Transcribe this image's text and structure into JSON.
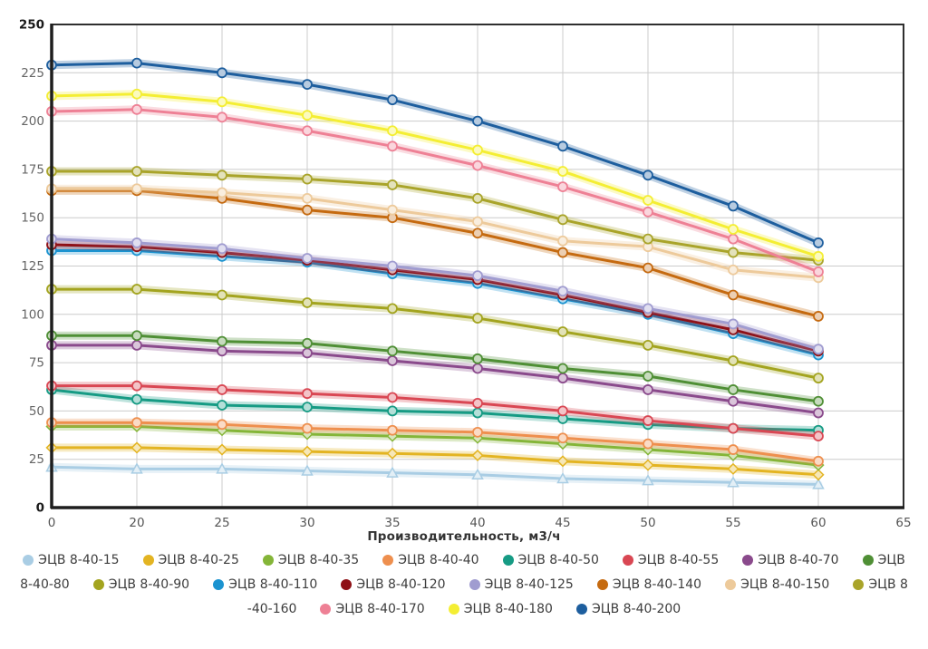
{
  "chart_data": {
    "type": "line",
    "title": "",
    "xlabel": "Производительность, м3/ч",
    "ylabel": "",
    "x_ticks": [
      "0",
      "20",
      "25",
      "30",
      "35",
      "40",
      "45",
      "50",
      "55",
      "60",
      "65"
    ],
    "categories": [
      "0",
      "20",
      "25",
      "30",
      "35",
      "40",
      "45",
      "50",
      "55",
      "60"
    ],
    "y_ticks": [
      0,
      25,
      50,
      75,
      100,
      125,
      150,
      175,
      200,
      225,
      250
    ],
    "ylim": [
      0,
      250
    ],
    "grid": true,
    "grid_color": "#cccccc",
    "axis_color": "#2f2f2f",
    "tick_label_color": "#666666",
    "series": [
      {
        "name": "ЭЦВ 8-40-15",
        "color": "#a9cde4",
        "marker": "triangle",
        "values": [
          21,
          20,
          20,
          19,
          18,
          17,
          15,
          14,
          13,
          12
        ]
      },
      {
        "name": "ЭЦВ 8-40-25",
        "color": "#e3b422",
        "marker": "diamond",
        "values": [
          31,
          31,
          30,
          29,
          28,
          27,
          24,
          22,
          20,
          17
        ]
      },
      {
        "name": "ЭЦВ 8-40-35",
        "color": "#84b538",
        "marker": "diamond",
        "values": [
          42,
          42,
          40,
          38,
          37,
          36,
          33,
          30,
          27,
          22
        ]
      },
      {
        "name": "ЭЦВ 8-40-40",
        "color": "#ee8f4e",
        "marker": "circle",
        "values": [
          44,
          44,
          43,
          41,
          40,
          39,
          36,
          33,
          30,
          24
        ]
      },
      {
        "name": "ЭЦВ 8-40-50",
        "color": "#169b84",
        "marker": "circle",
        "values": [
          61,
          56,
          53,
          52,
          50,
          49,
          46,
          43,
          41,
          40
        ]
      },
      {
        "name": "ЭЦВ 8-40-55",
        "color": "#d94753",
        "marker": "circle",
        "values": [
          63,
          63,
          61,
          59,
          57,
          54,
          50,
          45,
          41,
          37
        ]
      },
      {
        "name": "ЭЦВ 8-40-70",
        "color": "#8a4a8c",
        "marker": "circle",
        "values": [
          84,
          84,
          81,
          80,
          76,
          72,
          67,
          61,
          55,
          49
        ]
      },
      {
        "name": "ЭЦВ 8-40-80",
        "color": "#4f8f35",
        "marker": "circle",
        "values": [
          89,
          89,
          86,
          85,
          81,
          77,
          72,
          68,
          61,
          55
        ]
      },
      {
        "name": "ЭЦВ 8-40-90",
        "color": "#a3a41f",
        "marker": "circle",
        "values": [
          113,
          113,
          110,
          106,
          103,
          98,
          91,
          84,
          76,
          67
        ]
      },
      {
        "name": "ЭЦВ 8-40-110",
        "color": "#1b93d0",
        "marker": "circle",
        "values": [
          133,
          133,
          130,
          127,
          121,
          116,
          108,
          100,
          90,
          79
        ]
      },
      {
        "name": "ЭЦВ 8-40-120",
        "color": "#8e1016",
        "marker": "circle",
        "values": [
          136,
          135,
          132,
          128,
          123,
          118,
          110,
          101,
          92,
          81
        ]
      },
      {
        "name": "ЭЦВ 8-40-125",
        "color": "#a09cd0",
        "marker": "circle",
        "values": [
          139,
          137,
          134,
          129,
          125,
          120,
          112,
          103,
          95,
          82
        ]
      },
      {
        "name": "ЭЦВ 8-40-140",
        "color": "#c56a10",
        "marker": "circle",
        "values": [
          164,
          164,
          160,
          154,
          150,
          142,
          132,
          124,
          110,
          99
        ]
      },
      {
        "name": "ЭЦВ 8-40-150",
        "color": "#edca9b",
        "marker": "circle",
        "values": [
          165,
          165,
          163,
          160,
          154,
          148,
          138,
          135,
          123,
          119
        ]
      },
      {
        "name": "ЭЦВ 8-40-160",
        "color": "#a9a42a",
        "marker": "circle",
        "values": [
          174,
          174,
          172,
          170,
          167,
          160,
          149,
          139,
          132,
          128
        ]
      },
      {
        "name": "ЭЦВ 8-40-170",
        "color": "#ee8095",
        "marker": "circle",
        "values": [
          205,
          206,
          202,
          195,
          187,
          177,
          166,
          153,
          139,
          122
        ]
      },
      {
        "name": "ЭЦВ 8-40-180",
        "color": "#f4ee33",
        "marker": "circle",
        "values": [
          213,
          214,
          210,
          203,
          195,
          185,
          174,
          159,
          144,
          130
        ]
      },
      {
        "name": "ЭЦВ 8-40-200",
        "color": "#1d5e9e",
        "marker": "circle",
        "values": [
          229,
          230,
          225,
          219,
          211,
          200,
          187,
          172,
          156,
          137
        ]
      }
    ],
    "legend_position": "bottom"
  },
  "legend": {
    "rows": [
      [
        {
          "color": "#a9cde4",
          "label": "ЭЦВ 8-40-15"
        },
        {
          "color": "#e3b422",
          "label": "ЭЦВ 8-40-25"
        },
        {
          "color": "#84b538",
          "label": "ЭЦВ 8-40-35"
        },
        {
          "color": "#ee8f4e",
          "label": "ЭЦВ 8-40-40"
        },
        {
          "color": "#169b84",
          "label": "ЭЦВ 8-40-50"
        },
        {
          "color": "#d94753",
          "label": "ЭЦВ 8-40-55"
        },
        {
          "color": "#8a4a8c",
          "label": "ЭЦВ 8-40-70"
        },
        {
          "color": "#4f8f35",
          "label": "ЭЦВ"
        }
      ],
      [
        {
          "color": null,
          "label": "8-40-80"
        },
        {
          "color": "#a3a41f",
          "label": "ЭЦВ 8-40-90"
        },
        {
          "color": "#1b93d0",
          "label": "ЭЦВ 8-40-110"
        },
        {
          "color": "#8e1016",
          "label": "ЭЦВ 8-40-120"
        },
        {
          "color": "#a09cd0",
          "label": "ЭЦВ 8-40-125"
        },
        {
          "color": "#c56a10",
          "label": "ЭЦВ 8-40-140"
        },
        {
          "color": "#edca9b",
          "label": "ЭЦВ 8-40-150"
        },
        {
          "color": "#a9a42a",
          "label": "ЭЦВ 8"
        }
      ],
      [
        {
          "color": null,
          "label": "-40-160"
        },
        {
          "color": "#ee8095",
          "label": "ЭЦВ 8-40-170"
        },
        {
          "color": "#f4ee33",
          "label": "ЭЦВ 8-40-180"
        },
        {
          "color": "#1d5e9e",
          "label": "ЭЦВ 8-40-200"
        }
      ]
    ]
  }
}
